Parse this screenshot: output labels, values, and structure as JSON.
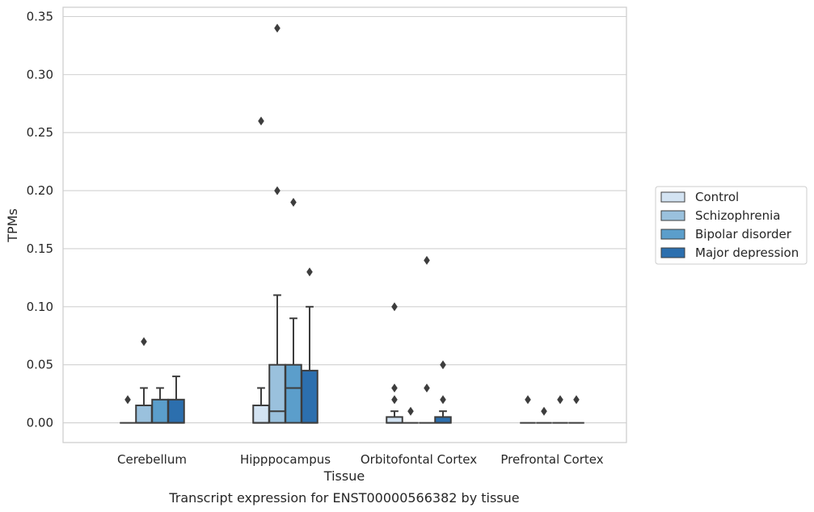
{
  "chart_data": {
    "type": "box",
    "caption": "Transcript expression for ENST00000566382 by tissue",
    "xlabel": "Tissue",
    "ylabel": "TPMs",
    "ylim": [
      -0.017,
      0.358
    ],
    "yticks": [
      "0.00",
      "0.05",
      "0.10",
      "0.15",
      "0.20",
      "0.25",
      "0.30",
      "0.35"
    ],
    "grid": "horizontal",
    "legend_position": "right",
    "categories": [
      "Cerebellum",
      "Hipppocampus",
      "Orbitofontal Cortex",
      "Prefrontal Cortex"
    ],
    "series": [
      {
        "name": "Control",
        "color": "#d3e3f2",
        "boxes": [
          {
            "q1": 0,
            "median": 0,
            "q3": 0,
            "whisker_low": 0,
            "whisker_high": 0,
            "outliers": [
              0.02
            ]
          },
          {
            "q1": 0,
            "median": 0,
            "q3": 0.015,
            "whisker_low": 0,
            "whisker_high": 0.03,
            "outliers": [
              0.26
            ]
          },
          {
            "q1": 0,
            "median": 0,
            "q3": 0.005,
            "whisker_low": 0,
            "whisker_high": 0.01,
            "outliers": [
              0.02,
              0.03,
              0.1
            ]
          },
          {
            "q1": 0,
            "median": 0,
            "q3": 0,
            "whisker_low": 0,
            "whisker_high": 0,
            "outliers": [
              0.02
            ]
          }
        ]
      },
      {
        "name": "Schizophrenia",
        "color": "#9ac1dd",
        "boxes": [
          {
            "q1": 0,
            "median": 0,
            "q3": 0.015,
            "whisker_low": 0,
            "whisker_high": 0.03,
            "outliers": [
              0.07
            ]
          },
          {
            "q1": 0,
            "median": 0.01,
            "q3": 0.05,
            "whisker_low": 0,
            "whisker_high": 0.11,
            "outliers": [
              0.2,
              0.34
            ]
          },
          {
            "q1": 0,
            "median": 0,
            "q3": 0,
            "whisker_low": 0,
            "whisker_high": 0,
            "outliers": [
              0.01
            ]
          },
          {
            "q1": 0,
            "median": 0,
            "q3": 0,
            "whisker_low": 0,
            "whisker_high": 0,
            "outliers": [
              0.01
            ]
          }
        ]
      },
      {
        "name": "Bipolar disorder",
        "color": "#5b9ecb",
        "boxes": [
          {
            "q1": 0,
            "median": 0,
            "q3": 0.02,
            "whisker_low": 0,
            "whisker_high": 0.03,
            "outliers": []
          },
          {
            "q1": 0,
            "median": 0.03,
            "q3": 0.05,
            "whisker_low": 0,
            "whisker_high": 0.09,
            "outliers": [
              0.19
            ]
          },
          {
            "q1": 0,
            "median": 0,
            "q3": 0,
            "whisker_low": 0,
            "whisker_high": 0,
            "outliers": [
              0.03,
              0.14
            ]
          },
          {
            "q1": 0,
            "median": 0,
            "q3": 0,
            "whisker_low": 0,
            "whisker_high": 0,
            "outliers": [
              0.02
            ]
          }
        ]
      },
      {
        "name": "Major depression",
        "color": "#2c6fae",
        "boxes": [
          {
            "q1": 0,
            "median": 0,
            "q3": 0.02,
            "whisker_low": 0,
            "whisker_high": 0.04,
            "outliers": []
          },
          {
            "q1": 0,
            "median": 0,
            "q3": 0.045,
            "whisker_low": 0,
            "whisker_high": 0.1,
            "outliers": [
              0.13
            ]
          },
          {
            "q1": 0,
            "median": 0,
            "q3": 0.005,
            "whisker_low": 0,
            "whisker_high": 0.01,
            "outliers": [
              0.02,
              0.05
            ]
          },
          {
            "q1": 0,
            "median": 0,
            "q3": 0,
            "whisker_low": 0,
            "whisker_high": 0,
            "outliers": [
              0.02
            ]
          }
        ]
      }
    ]
  }
}
